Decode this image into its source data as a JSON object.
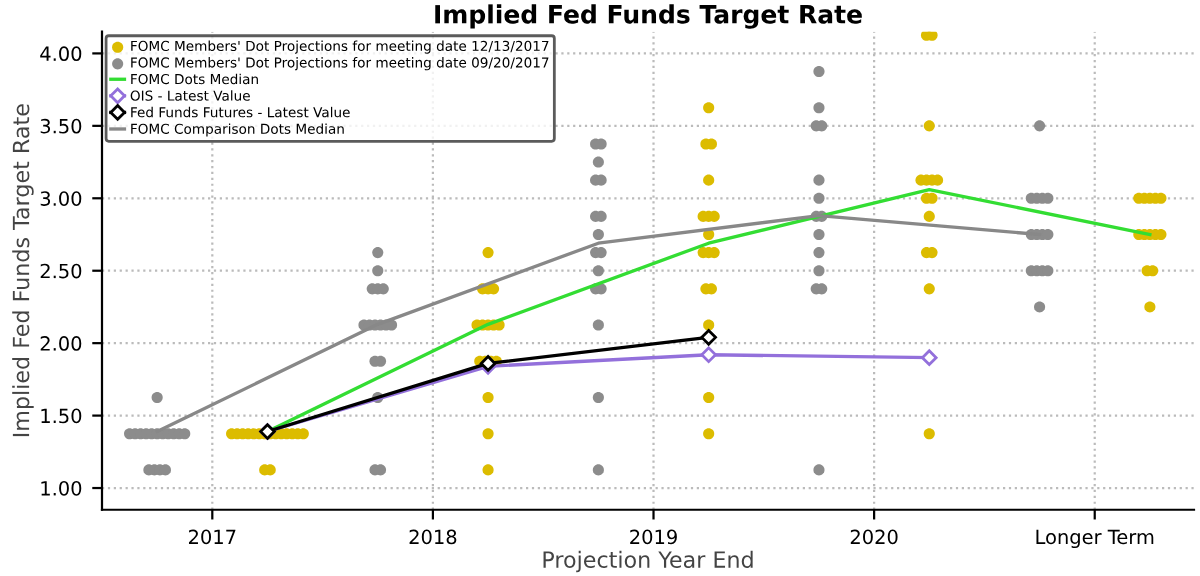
{
  "chart_data": {
    "type": "scatter",
    "title": "Implied Fed Funds Target Rate",
    "xlabel": "Projection Year End",
    "ylabel": "Implied Fed Funds Target Rate",
    "xlim": [
      2016.5,
      2021.45
    ],
    "ylim": [
      0.85,
      4.15
    ],
    "xticks": [
      2017,
      2018,
      2019,
      2020,
      {
        "value": 2021,
        "label": "Longer Term"
      }
    ],
    "yticks": [
      {
        "value": 1,
        "label": "1.00"
      },
      {
        "value": 1.5,
        "label": "1.50"
      },
      {
        "value": 2,
        "label": "2.00"
      },
      {
        "value": 2.5,
        "label": "2.50"
      },
      {
        "value": 3,
        "label": "3.00"
      },
      {
        "value": 3.5,
        "label": "3.50"
      },
      {
        "value": 4,
        "label": "4.00"
      }
    ],
    "grid": true,
    "legend": "top left",
    "series": [
      {
        "name": "FOMC Members' Dot Projections for meeting date 12/13/2017",
        "marker": "circle",
        "color": "#dcbc00",
        "x": [
          2017.2375,
          2017.2625,
          2017.0875,
          2017.1125,
          2017.1375,
          2017.1625,
          2017.1875,
          2017.2125,
          2017.2375,
          2017.2625,
          2017.2875,
          2017.3125,
          2017.3375,
          2017.3625,
          2017.3875,
          2017.4125,
          2018.25,
          2018.25,
          2018.25,
          2018.2125,
          2018.2375,
          2018.2625,
          2018.2875,
          2018.2,
          2018.225,
          2018.25,
          2018.275,
          2018.3,
          2018.225,
          2018.25,
          2018.275,
          2018.25,
          2019.25,
          2019.25,
          2019.25,
          2019.2375,
          2019.2625,
          2019.225,
          2019.25,
          2019.275,
          2019.25,
          2019.225,
          2019.25,
          2019.275,
          2019.25,
          2019.2375,
          2019.2625,
          2019.25,
          2020.25,
          2020.25,
          2020.2375,
          2020.2625,
          2020.25,
          2020.2375,
          2020.2625,
          2020.2125,
          2020.2375,
          2020.2625,
          2020.2875,
          2020.25,
          2020.2375,
          2020.2625,
          2021.25,
          2021.2375,
          2021.2625,
          2021.2,
          2021.225,
          2021.25,
          2021.275,
          2021.3,
          2021.2,
          2021.225,
          2021.25,
          2021.275,
          2021.3
        ],
        "values": [
          1.125,
          1.125,
          1.375,
          1.375,
          1.375,
          1.375,
          1.375,
          1.375,
          1.375,
          1.375,
          1.375,
          1.375,
          1.375,
          1.375,
          1.375,
          1.375,
          1.125,
          1.375,
          1.625,
          1.875,
          1.875,
          1.875,
          1.875,
          2.125,
          2.125,
          2.125,
          2.125,
          2.125,
          2.375,
          2.375,
          2.375,
          2.625,
          1.375,
          1.625,
          2.125,
          2.375,
          2.375,
          2.625,
          2.625,
          2.625,
          2.75,
          2.875,
          2.875,
          2.875,
          3.125,
          3.375,
          3.375,
          3.625,
          1.375,
          2.375,
          2.625,
          2.625,
          2.875,
          3.0,
          3.0,
          3.125,
          3.125,
          3.125,
          3.125,
          3.5,
          4.125,
          4.125,
          2.25,
          2.5,
          2.5,
          2.75,
          2.75,
          2.75,
          2.75,
          2.75,
          3.0,
          3.0,
          3.0,
          3.0,
          3.0
        ]
      },
      {
        "name": "FOMC Members' Dot Projections for meeting date 09/20/2017",
        "marker": "circle",
        "color": "#8c8c8c",
        "x": [
          2016.7125,
          2016.7375,
          2016.7625,
          2016.7875,
          2016.625,
          2016.65,
          2016.675,
          2016.7,
          2016.725,
          2016.75,
          2016.775,
          2016.8,
          2016.825,
          2016.85,
          2016.875,
          2016.75,
          2017.7375,
          2017.7625,
          2017.75,
          2017.7375,
          2017.7625,
          2017.6875,
          2017.7125,
          2017.7375,
          2017.7625,
          2017.7875,
          2017.8125,
          2017.725,
          2017.75,
          2017.775,
          2017.75,
          2017.75,
          2018.75,
          2018.75,
          2018.75,
          2018.7375,
          2018.7625,
          2018.75,
          2018.7375,
          2018.7625,
          2018.75,
          2018.7375,
          2018.7625,
          2018.7375,
          2018.7625,
          2018.75,
          2018.7375,
          2018.7625,
          2019.75,
          2019.7375,
          2019.7625,
          2019.75,
          2019.75,
          2019.75,
          2019.7375,
          2019.7625,
          2019.75,
          2019.75,
          2019.7375,
          2019.7625,
          2019.75,
          2019.75,
          2020.75,
          2020.7125,
          2020.7375,
          2020.7625,
          2020.7875,
          2020.7125,
          2020.7375,
          2020.7625,
          2020.7875,
          2020.7125,
          2020.7375,
          2020.7625,
          2020.7875,
          2020.75
        ],
        "values": [
          1.125,
          1.125,
          1.125,
          1.125,
          1.375,
          1.375,
          1.375,
          1.375,
          1.375,
          1.375,
          1.375,
          1.375,
          1.375,
          1.375,
          1.375,
          1.625,
          1.125,
          1.125,
          1.625,
          1.875,
          1.875,
          2.125,
          2.125,
          2.125,
          2.125,
          2.125,
          2.125,
          2.375,
          2.375,
          2.375,
          2.5,
          2.625,
          1.125,
          1.625,
          2.125,
          2.375,
          2.375,
          2.5,
          2.625,
          2.625,
          2.75,
          2.875,
          2.875,
          3.125,
          3.125,
          3.25,
          3.375,
          3.375,
          1.125,
          2.375,
          2.375,
          2.5,
          2.625,
          2.75,
          2.875,
          2.875,
          3.0,
          3.125,
          3.5,
          3.5,
          3.625,
          3.875,
          2.25,
          2.5,
          2.5,
          2.5,
          2.5,
          2.75,
          2.75,
          2.75,
          2.75,
          3.0,
          3.0,
          3.0,
          3.0,
          3.5
        ]
      },
      {
        "name": "FOMC Dots Median",
        "type": "line",
        "marker": "none",
        "color": "#33dd33",
        "x": [
          2017.25,
          2018.25,
          2019.25,
          2020.25,
          2021.25
        ],
        "values": [
          1.39,
          2.13,
          2.69,
          3.06,
          2.75
        ]
      },
      {
        "name": "OIS - Latest Value",
        "type": "line",
        "marker": "diamond",
        "color": "#9370db",
        "x": [
          2017.25,
          2018.25,
          2019.25,
          2020.25
        ],
        "values": [
          1.39,
          1.84,
          1.92,
          1.9
        ]
      },
      {
        "name": "Fed Funds Futures - Latest Value",
        "type": "line",
        "marker": "diamond",
        "color": "#000000",
        "x": [
          2017.25,
          2018.25,
          2019.25
        ],
        "values": [
          1.39,
          1.86,
          2.04
        ]
      },
      {
        "name": "FOMC Comparison Dots Median",
        "type": "line",
        "marker": "none",
        "color": "#888888",
        "x": [
          2016.75,
          2017.75,
          2018.75,
          2019.75,
          2020.75
        ],
        "values": [
          1.39,
          2.13,
          2.69,
          2.88,
          2.75
        ]
      }
    ]
  }
}
